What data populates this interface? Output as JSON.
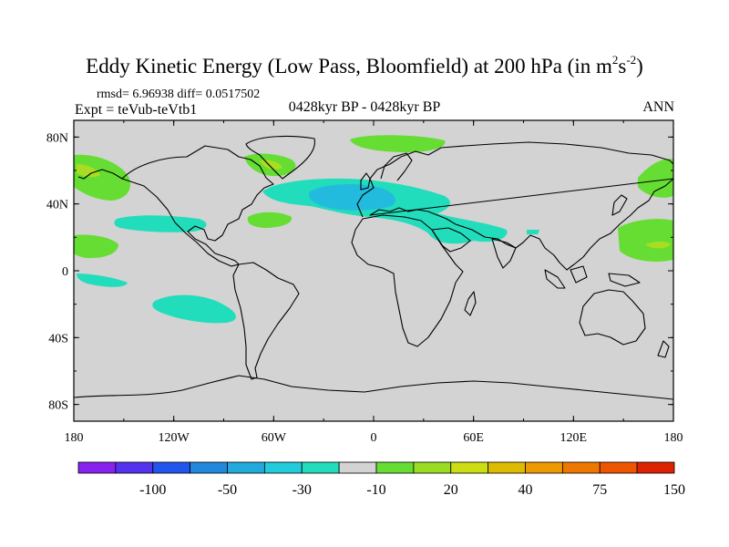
{
  "title": {
    "main": "Eddy Kinetic Energy (Low Pass, Bloomfield) at 200 hPa (in m",
    "sup1": "2",
    "mid": "s",
    "sup2": "-2",
    "end": ")"
  },
  "subtitle": {
    "rmsd": "rmsd= 6.96938 diff= 0.0517502",
    "experiment": "Expt = teVub-teVtb1",
    "period": "0428kyr BP - 0428kyr BP",
    "season": "ANN"
  },
  "map": {
    "background_color": "#d3d3d3",
    "x_ticks": [
      "180",
      "120W",
      "60W",
      "0",
      "60E",
      "120E",
      "180"
    ],
    "y_ticks": [
      "80N",
      "40N",
      "0",
      "40S",
      "80S"
    ],
    "colors": {
      "green": "#66dd33",
      "yellowgreen": "#aadd22",
      "teal": "#22ddbb",
      "cyan": "#22bbdd"
    }
  },
  "colorbar": {
    "colors": [
      "#8822ee",
      "#5533ee",
      "#2255ee",
      "#2288dd",
      "#22aadd",
      "#22ccdd",
      "#22ddbb",
      "#d3d3d3",
      "#66dd33",
      "#99dd22",
      "#ccdd11",
      "#ddbb00",
      "#ee9900",
      "#ee7700",
      "#ee5500",
      "#dd2200"
    ],
    "labels": [
      "-100",
      "-50",
      "-30",
      "-10",
      "20",
      "40",
      "75",
      "150"
    ]
  }
}
